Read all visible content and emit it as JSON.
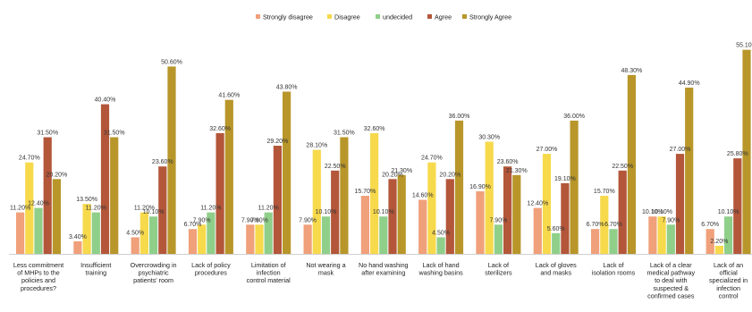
{
  "chart_data": {
    "type": "bar",
    "categories": [
      "Less commitment of MHPs to the policies and procedures?",
      "Insufficient training",
      "Overcrowding in psychiatric patients' room",
      "Lack of policy procedures",
      "Limitation of infection control material",
      "Not wearing a mask",
      "No hand washing after examining",
      "Lack of hand washing basins",
      "Lack of sterilizers",
      "Lack of gloves and masks",
      "Lack of isolation rooms",
      "Lack of a clear medical pathway to deal with suspected & confirmed cases",
      "Lack of an official specialized in infection control"
    ],
    "series": [
      {
        "name": "Strongly disagree",
        "color": "#f0a07a",
        "values": [
          11.2,
          3.4,
          4.5,
          6.7,
          7.9,
          7.9,
          15.7,
          14.6,
          16.9,
          12.4,
          6.7,
          10.1,
          6.7
        ]
      },
      {
        "name": "Disagree",
        "color": "#f7d94c",
        "values": [
          24.7,
          13.5,
          11.2,
          7.9,
          7.9,
          28.1,
          32.6,
          24.7,
          30.3,
          27.0,
          15.7,
          10.1,
          2.2
        ]
      },
      {
        "name": "undecided",
        "color": "#8fcf8a",
        "values": [
          12.4,
          11.2,
          10.1,
          11.2,
          11.2,
          10.1,
          10.1,
          4.5,
          7.9,
          5.6,
          6.7,
          7.9,
          10.1
        ]
      },
      {
        "name": "Agree",
        "color": "#b3563a",
        "values": [
          31.5,
          40.4,
          23.6,
          32.6,
          29.2,
          22.5,
          20.2,
          20.2,
          23.6,
          19.1,
          22.5,
          27.0,
          25.8
        ]
      },
      {
        "name": "Strongly Agree",
        "color": "#b8962a",
        "values": [
          20.2,
          31.5,
          50.6,
          41.6,
          43.8,
          31.5,
          21.3,
          36.0,
          21.3,
          36.0,
          48.3,
          44.9,
          55.1
        ]
      }
    ],
    "value_labels": [
      [
        "11.20%",
        "3.40%",
        "4.50%",
        "6.70%",
        "7.90%",
        "7.90%",
        "15.70%",
        "14.60%",
        "16.90%",
        "12.40%",
        "6.70%",
        "10.10%",
        "6.70%"
      ],
      [
        "24.70%",
        "13.50%",
        "11.20%",
        "7.90%",
        "7.90%",
        "28.10%",
        "32.60%",
        "24.70%",
        "30.30%",
        "27.00%",
        "15.70%",
        "10.10%",
        "2.20%"
      ],
      [
        "12.40%",
        "11.20%",
        "10.10%",
        "11.20%",
        "11.20%",
        "10.10%",
        "10.10%",
        "4.50%",
        "7.90%",
        "5.60%",
        "6.70%",
        "7.90%",
        "10.10%"
      ],
      [
        "31.50%",
        "40.40%",
        "23.60%",
        "32.60%",
        "29.20%",
        "22.50%",
        "20.20%",
        "20.20%",
        "23.60%",
        "19.10%",
        "22.50%",
        "27.00%",
        "25.80%"
      ],
      [
        "20.20%",
        "31.50%",
        "50.60%",
        "41.60%",
        "43.80%",
        "31.50%",
        "21.30%",
        "36.00%",
        "21.30%",
        "36.00%",
        "48.30%",
        "44.90%",
        "55.10%"
      ]
    ],
    "ylim": [
      0,
      56
    ],
    "grid": false,
    "legend_position": "top"
  }
}
